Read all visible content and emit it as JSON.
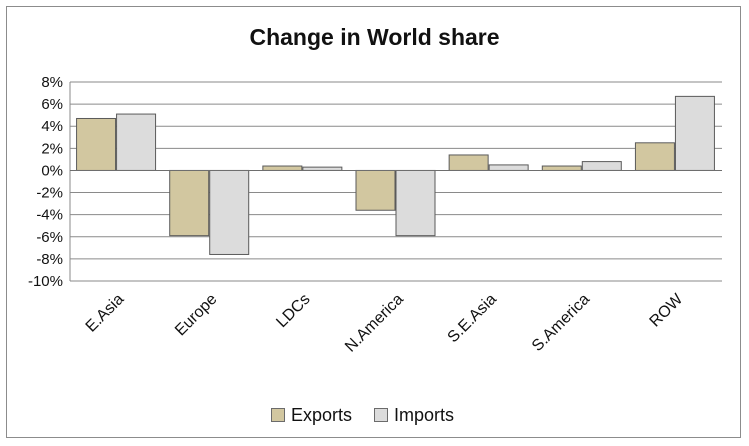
{
  "chart_data": {
    "type": "bar",
    "title": "Change in World share",
    "xlabel": "",
    "ylabel": "",
    "categories": [
      "E.Asia",
      "Europe",
      "LDCs",
      "N.America",
      "S.E.Asia",
      "S.America",
      "ROW"
    ],
    "series": [
      {
        "name": "Exports",
        "color": "#d2c7a0",
        "values": [
          4.7,
          -5.9,
          0.4,
          -3.6,
          1.4,
          0.4,
          2.5
        ]
      },
      {
        "name": "Imports",
        "color": "#dcdcdc",
        "values": [
          5.1,
          -7.6,
          0.3,
          -5.9,
          0.5,
          0.8,
          6.7
        ]
      }
    ],
    "ylim": [
      -10,
      8
    ],
    "yticks": [
      "8%",
      "6%",
      "4%",
      "2%",
      "0%",
      "-2%",
      "-4%",
      "-6%",
      "-8%",
      "-10%"
    ],
    "ytick_values": [
      8,
      6,
      4,
      2,
      0,
      -2,
      -4,
      -6,
      -8,
      -10
    ],
    "grid": true,
    "legend_position": "bottom"
  }
}
